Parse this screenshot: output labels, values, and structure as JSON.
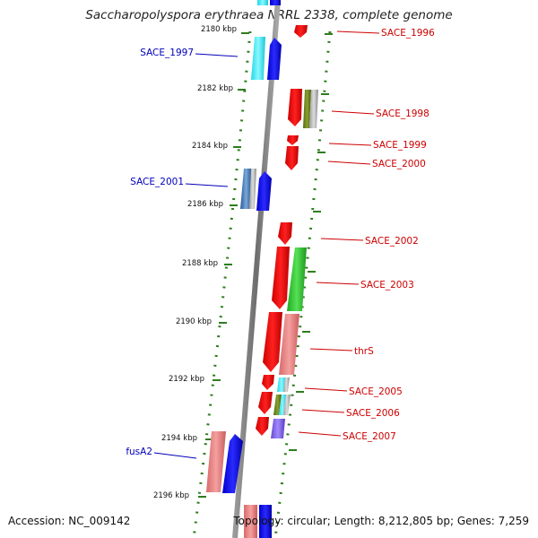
{
  "title": "Saccharopolyspora erythraea NRRL 2338, complete genome",
  "accession": "Accession: NC_009142",
  "topology": "Topology: circular; Length: 8,212,805 bp; Genes: 7,259",
  "scale": {
    "unit": "kbp",
    "ticks": [
      {
        "label": "2180 kbp",
        "value": 2180
      },
      {
        "label": "2182 kbp",
        "value": 2182
      },
      {
        "label": "2184 kbp",
        "value": 2184
      },
      {
        "label": "2186 kbp",
        "value": 2186
      },
      {
        "label": "2188 kbp",
        "value": 2188
      },
      {
        "label": "2190 kbp",
        "value": 2190
      },
      {
        "label": "2192 kbp",
        "value": 2192
      },
      {
        "label": "2194 kbp",
        "value": 2194
      },
      {
        "label": "2196 kbp",
        "value": 2196
      }
    ]
  },
  "gene_labels": [
    {
      "name": "SACE_1996",
      "strand": "reverse",
      "color": "#cc0000"
    },
    {
      "name": "SACE_1997",
      "strand": "forward",
      "color": "#0000bb"
    },
    {
      "name": "SACE_1998",
      "strand": "reverse",
      "color": "#cc0000"
    },
    {
      "name": "SACE_1999",
      "strand": "reverse",
      "color": "#cc0000"
    },
    {
      "name": "SACE_2000",
      "strand": "reverse",
      "color": "#cc0000"
    },
    {
      "name": "SACE_2001",
      "strand": "forward",
      "color": "#0000bb"
    },
    {
      "name": "SACE_2002",
      "strand": "reverse",
      "color": "#cc0000"
    },
    {
      "name": "SACE_2003",
      "strand": "reverse",
      "color": "#cc0000"
    },
    {
      "name": "thrS",
      "strand": "reverse",
      "color": "#cc0000"
    },
    {
      "name": "SACE_2005",
      "strand": "reverse",
      "color": "#cc0000"
    },
    {
      "name": "SACE_2006",
      "strand": "reverse",
      "color": "#cc0000"
    },
    {
      "name": "SACE_2007",
      "strand": "reverse",
      "color": "#cc0000"
    },
    {
      "name": "fusA2",
      "strand": "forward",
      "color": "#0000bb"
    }
  ],
  "colors": {
    "forward_strand": "#0000ee",
    "reverse_strand": "#ee0000",
    "backbone": "#888888",
    "tick_marks": "#2e7d1e"
  }
}
